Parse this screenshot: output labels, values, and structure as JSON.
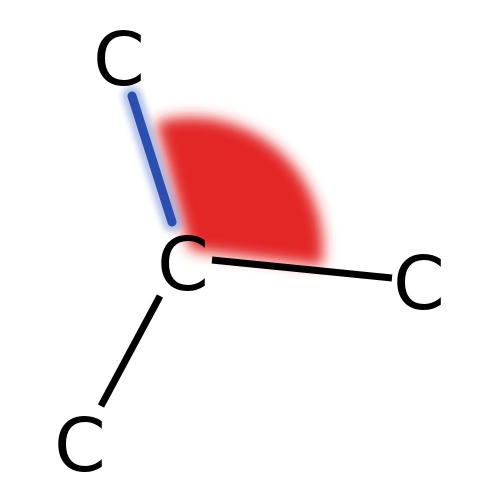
{
  "molecule": {
    "atoms": [
      {
        "id": "top",
        "label": "C"
      },
      {
        "id": "center",
        "label": "C"
      },
      {
        "id": "right",
        "label": "C"
      },
      {
        "id": "bottom",
        "label": "C"
      }
    ],
    "bonds": [
      {
        "from": "top",
        "to": "center",
        "highlighted": true
      },
      {
        "from": "center",
        "to": "right",
        "highlighted": false
      },
      {
        "from": "center",
        "to": "bottom",
        "highlighted": false
      }
    ],
    "highlight_bond_color": "#2a4fb0",
    "angle_highlight_color": "#e32626",
    "bond_color": "#000000"
  }
}
